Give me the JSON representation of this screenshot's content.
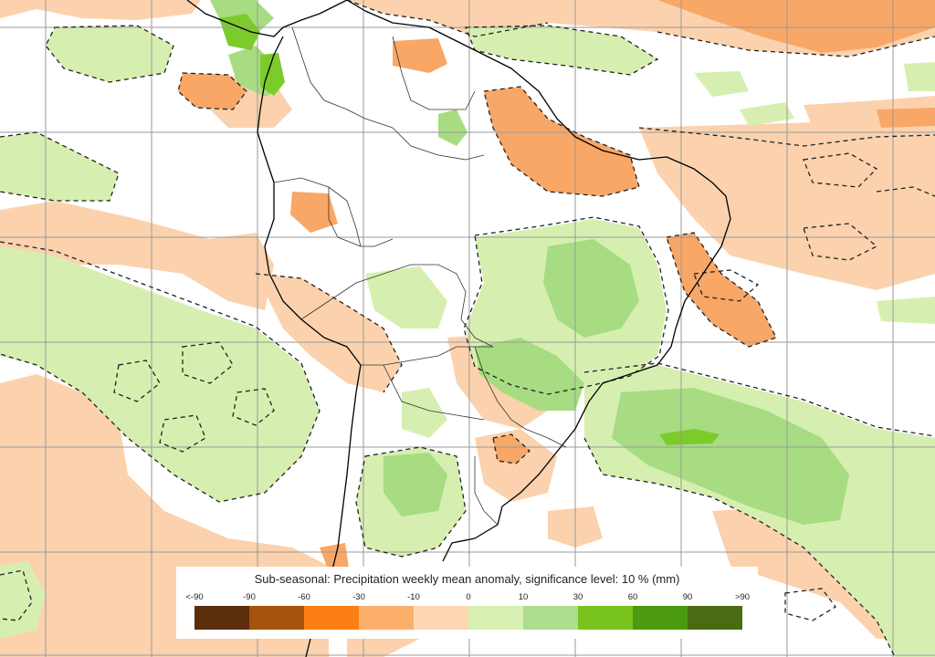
{
  "map": {
    "title": "Sub-seasonal: Precipitation weekly mean anomaly, significance level: 10 % (mm)",
    "legend": {
      "ticks": [
        "<-90",
        "-90",
        "-60",
        "-30",
        "-10",
        "0",
        "10",
        "30",
        "60",
        "90",
        ">90"
      ],
      "colors": [
        "#5a2d0c",
        "#a6530e",
        "#fb7f12",
        "#fcae6b",
        "#fdd7b4",
        "#ffffff",
        "#d9f0b3",
        "#addd8e",
        "#78c31e",
        "#4c9a0f",
        "#4a6b11"
      ]
    },
    "palette": {
      "dry_light": "#fbd2ad",
      "dry_medium": "#f8a767",
      "wet_light": "#d6efb0",
      "wet_medium": "#a7dc82",
      "wet_strong": "#7ccb2c",
      "grid": "#9a9a9a",
      "borders": "#000000"
    },
    "style": {
      "grid_lines": true,
      "significance_contours": "dashed",
      "legend_position": "bottom-center"
    }
  }
}
